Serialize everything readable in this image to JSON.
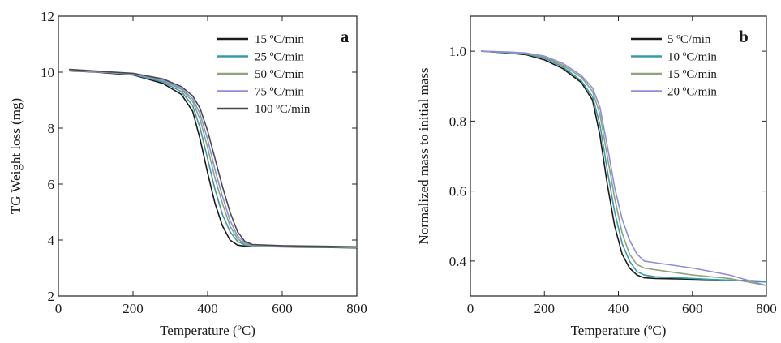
{
  "chart_data": [
    {
      "type": "line",
      "panel_label": "a",
      "xlabel": "Temperature (ºC)",
      "ylabel": "TG Weight loss (mg)",
      "xlim": [
        0,
        800
      ],
      "ylim": [
        2,
        12
      ],
      "xticks": [
        "0",
        "200",
        "400",
        "600",
        "800"
      ],
      "yticks": [
        "2",
        "4",
        "6",
        "8",
        "10",
        "12"
      ],
      "grid": false,
      "legend_position": "top-right",
      "series": [
        {
          "name": "15 ºC/min",
          "color": "#1a1a1a",
          "x": [
            30,
            100,
            200,
            280,
            330,
            360,
            380,
            400,
            420,
            440,
            460,
            480,
            500,
            520,
            600,
            700,
            800
          ],
          "y": [
            10.05,
            10.0,
            9.9,
            9.6,
            9.2,
            8.6,
            7.6,
            6.4,
            5.3,
            4.5,
            4.0,
            3.82,
            3.78,
            3.77,
            3.76,
            3.74,
            3.72
          ]
        },
        {
          "name": "25 ºC/min",
          "color": "#3a9aa8",
          "x": [
            30,
            100,
            200,
            280,
            330,
            360,
            380,
            400,
            420,
            440,
            460,
            480,
            500,
            520,
            600,
            700,
            800
          ],
          "y": [
            10.08,
            10.02,
            9.92,
            9.65,
            9.3,
            8.8,
            8.0,
            6.9,
            5.8,
            4.9,
            4.3,
            3.95,
            3.82,
            3.79,
            3.77,
            3.75,
            3.73
          ]
        },
        {
          "name": "50 ºC/min",
          "color": "#8fa37e",
          "x": [
            30,
            100,
            200,
            280,
            330,
            360,
            380,
            400,
            420,
            440,
            460,
            480,
            500,
            520,
            600,
            700,
            800
          ],
          "y": [
            10.06,
            10.01,
            9.93,
            9.7,
            9.38,
            8.95,
            8.3,
            7.3,
            6.2,
            5.3,
            4.5,
            4.05,
            3.85,
            3.8,
            3.78,
            3.76,
            3.74
          ]
        },
        {
          "name": "75 ºC/min",
          "color": "#8f8fd8",
          "x": [
            30,
            100,
            200,
            280,
            330,
            360,
            380,
            400,
            420,
            440,
            460,
            480,
            500,
            520,
            600,
            700,
            800
          ],
          "y": [
            10.07,
            10.02,
            9.94,
            9.72,
            9.42,
            9.05,
            8.5,
            7.6,
            6.5,
            5.55,
            4.7,
            4.15,
            3.9,
            3.82,
            3.79,
            3.77,
            3.75
          ]
        },
        {
          "name": "100 ºC/min",
          "color": "#4a4a4a",
          "x": [
            30,
            100,
            200,
            280,
            330,
            360,
            380,
            400,
            420,
            440,
            460,
            480,
            500,
            520,
            600,
            700,
            800
          ],
          "y": [
            10.1,
            10.04,
            9.96,
            9.76,
            9.48,
            9.15,
            8.7,
            7.9,
            6.9,
            5.9,
            5.0,
            4.3,
            3.95,
            3.84,
            3.8,
            3.78,
            3.76
          ]
        }
      ]
    },
    {
      "type": "line",
      "panel_label": "b",
      "xlabel": "Temperature (ºC)",
      "ylabel": "Normalized mass to initial mass",
      "xlim": [
        0,
        800
      ],
      "ylim": [
        0.3,
        1.1
      ],
      "xticks": [
        "0",
        "200",
        "400",
        "600",
        "800"
      ],
      "yticks": [
        "0.4",
        "0.6",
        "0.8",
        "1.0"
      ],
      "grid": false,
      "legend_position": "top-right",
      "series": [
        {
          "name": "5 ºC/min",
          "color": "#1a1a1a",
          "x": [
            30,
            100,
            150,
            200,
            250,
            300,
            330,
            350,
            370,
            390,
            410,
            430,
            450,
            470,
            500,
            600,
            700,
            800
          ],
          "y": [
            1.0,
            0.995,
            0.99,
            0.975,
            0.95,
            0.91,
            0.86,
            0.76,
            0.62,
            0.5,
            0.42,
            0.38,
            0.36,
            0.352,
            0.35,
            0.348,
            0.345,
            0.342
          ]
        },
        {
          "name": "10 ºC/min",
          "color": "#3a9aa8",
          "x": [
            30,
            100,
            150,
            200,
            250,
            300,
            330,
            350,
            370,
            390,
            410,
            430,
            450,
            470,
            500,
            600,
            700,
            800
          ],
          "y": [
            1.0,
            0.996,
            0.992,
            0.98,
            0.955,
            0.915,
            0.87,
            0.79,
            0.66,
            0.54,
            0.45,
            0.4,
            0.37,
            0.36,
            0.355,
            0.35,
            0.345,
            0.34
          ]
        },
        {
          "name": "15 ºC/min",
          "color": "#8fa37e",
          "x": [
            30,
            100,
            150,
            200,
            250,
            300,
            330,
            350,
            370,
            390,
            410,
            430,
            450,
            470,
            500,
            600,
            700,
            800
          ],
          "y": [
            1.0,
            0.997,
            0.993,
            0.983,
            0.96,
            0.925,
            0.885,
            0.82,
            0.7,
            0.58,
            0.48,
            0.42,
            0.39,
            0.38,
            0.375,
            0.36,
            0.35,
            0.33
          ]
        },
        {
          "name": "20 ºC/min",
          "color": "#8f8fd8",
          "x": [
            30,
            100,
            150,
            200,
            250,
            300,
            330,
            350,
            370,
            390,
            410,
            430,
            450,
            470,
            500,
            600,
            700,
            800
          ],
          "y": [
            1.0,
            0.998,
            0.995,
            0.986,
            0.965,
            0.93,
            0.895,
            0.84,
            0.73,
            0.61,
            0.52,
            0.46,
            0.42,
            0.4,
            0.395,
            0.38,
            0.36,
            0.33
          ]
        }
      ]
    }
  ]
}
